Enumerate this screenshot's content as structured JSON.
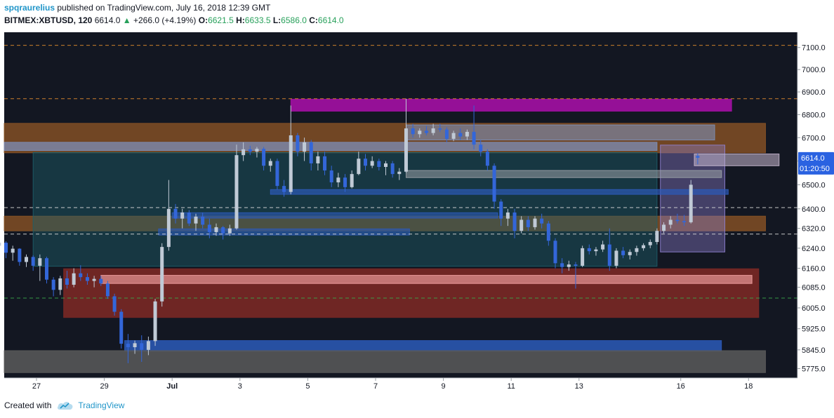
{
  "header": {
    "author": "spqraurelius",
    "published": "published on TradingView.com, July 16, 2018 12:39 GMT",
    "symbol": "BITMEX:XBTUSD, 120",
    "last": "6614.0",
    "change": "+266.0 (+4.19%)",
    "open_label": "O:",
    "open": "6621.5",
    "high_label": "H:",
    "high": "6633.5",
    "low_label": "L:",
    "low": "6586.0",
    "close_label": "C:",
    "close": "6614.0"
  },
  "footer": {
    "created_with": "Created with",
    "brand": "TradingView"
  },
  "colors": {
    "background": "#131722",
    "up": "#c0cad6",
    "down": "#3366d9",
    "accent_magenta": "#9c109c",
    "accent_orange": "#8a5326",
    "accent_red": "#7a2825",
    "accent_blue": "#2c5ab8",
    "price_badge": "#2a62e1"
  },
  "chart_data": {
    "type": "candlestick",
    "x_axis_labels": [
      "27",
      "29",
      "Jul",
      "3",
      "5",
      "7",
      "9",
      "11",
      "13",
      "16",
      "18"
    ],
    "y_axis_labels": [
      "7100.0",
      "7000.0",
      "6900.0",
      "6800.0",
      "6700.0",
      "6600.0",
      "6500.0",
      "6400.0",
      "6320.0",
      "6240.0",
      "6160.0",
      "6085.0",
      "6005.0",
      "5925.0",
      "5845.0",
      "5775.0"
    ],
    "y_scale": "log",
    "ylim": [
      5740,
      7170
    ],
    "last_price_label": "6614.0",
    "countdown_label": "01:20:50",
    "horizontal_lines": [
      {
        "price": 7110,
        "style": "dashed",
        "color": "#e08a2e"
      },
      {
        "price": 6870,
        "style": "dashed",
        "color": "#e08a2e"
      },
      {
        "price": 6405,
        "style": "dashed",
        "color": "#d8d8d8"
      },
      {
        "price": 6297,
        "style": "dashed",
        "color": "#d8d8d8"
      },
      {
        "price": 6043,
        "style": "dashed",
        "color": "#3aa84a"
      }
    ],
    "zones": [
      {
        "date_from": "Jun 26",
        "date_to": "Jul 18.5",
        "price_from": 6635,
        "price_to": 6762,
        "color": "#8a5326",
        "opacity": 0.8
      },
      {
        "date_from": "Jun 26",
        "date_to": "Jul 18.5",
        "price_from": 6310,
        "price_to": 6370,
        "color": "#8a5326",
        "opacity": 0.8
      },
      {
        "date_from": "Jul 4.5",
        "date_to": "Jul 17.5",
        "price_from": 6815,
        "price_to": 6868,
        "color": "#a410a4",
        "opacity": 0.9
      },
      {
        "date_from": "Jun 26.9",
        "date_to": "Jul 15.3",
        "price_from": 6168,
        "price_to": 6636,
        "color": "#1d5f6b",
        "opacity": 0.45
      },
      {
        "date_from": "Jun 27.8",
        "date_to": "Jul 18.3",
        "price_from": 5968,
        "price_to": 6158,
        "color": "#7a2825",
        "opacity": 0.9
      },
      {
        "date_from": "Jun 29.6",
        "date_to": "Jul 17.2",
        "price_from": 5840,
        "price_to": 5880,
        "color": "#2c5ab8",
        "opacity": 0.85
      },
      {
        "date_from": "Jun 26",
        "date_to": "Jul 18.5",
        "price_from": 5760,
        "price_to": 5842,
        "color": "#5a5a5a",
        "opacity": 0.85
      },
      {
        "date_from": "Jul 15.4",
        "date_to": "Jul 17.3",
        "price_from": 6225,
        "price_to": 6668,
        "color": "#8e7fd0",
        "opacity": 0.4
      },
      {
        "date_from": "Jun 26",
        "date_to": "Jul 15.3",
        "price_from": 6645,
        "price_to": 6680,
        "color": "#7d8fb8",
        "opacity": 0.75
      },
      {
        "date_from": "Jul 7.9",
        "date_to": "Jul 17.0",
        "price_from": 6690,
        "price_to": 6755,
        "color": "#7d8fb8",
        "opacity": 0.6
      },
      {
        "date_from": "Jul 7.9",
        "date_to": "Jul 17.2",
        "price_from": 6530,
        "price_to": 6560,
        "color": "#9aa0a6",
        "opacity": 0.55
      },
      {
        "date_from": "Jul 3.9",
        "date_to": "Jul 17.4",
        "price_from": 6460,
        "price_to": 6480,
        "color": "#2c5ab8",
        "opacity": 0.7
      },
      {
        "date_from": "Jul 1",
        "date_to": "Jul 10.6",
        "price_from": 6362,
        "price_to": 6384,
        "color": "#2c5ab8",
        "opacity": 0.6
      },
      {
        "date_from": "Jun 30.6",
        "date_to": "Jul 8",
        "price_from": 6293,
        "price_to": 6318,
        "color": "#2c5ab8",
        "opacity": 0.6
      },
      {
        "date_from": "Jul 16.4",
        "date_to": "Jul 18.9",
        "price_from": 6580,
        "price_to": 6630,
        "color": "#c8b8d0",
        "opacity": 0.55
      },
      {
        "date_from": "Jun 28.9",
        "date_to": "Jul 18.1",
        "price_from": 6100,
        "price_to": 6132,
        "color": "#f0a0a0",
        "opacity": 0.65
      }
    ],
    "candles": [
      {
        "t": "Jun 25.9",
        "o": 6250,
        "h": 6280,
        "l": 6215,
        "c": 6262
      },
      {
        "t": "Jun 26.1",
        "o": 6262,
        "h": 6268,
        "l": 6200,
        "c": 6222
      },
      {
        "t": "Jun 26.3",
        "o": 6222,
        "h": 6250,
        "l": 6190,
        "c": 6238
      },
      {
        "t": "Jun 26.5",
        "o": 6238,
        "h": 6240,
        "l": 6170,
        "c": 6185
      },
      {
        "t": "Jun 26.7",
        "o": 6185,
        "h": 6215,
        "l": 6165,
        "c": 6205
      },
      {
        "t": "Jun 26.9",
        "o": 6205,
        "h": 6212,
        "l": 6150,
        "c": 6170
      },
      {
        "t": "Jun 27.1",
        "o": 6170,
        "h": 6215,
        "l": 6110,
        "c": 6200
      },
      {
        "t": "Jun 27.3",
        "o": 6200,
        "h": 6206,
        "l": 6100,
        "c": 6115
      },
      {
        "t": "Jun 27.5",
        "o": 6115,
        "h": 6125,
        "l": 6050,
        "c": 6075
      },
      {
        "t": "Jun 27.7",
        "o": 6075,
        "h": 6130,
        "l": 6055,
        "c": 6120
      },
      {
        "t": "Jun 27.9",
        "o": 6120,
        "h": 6150,
        "l": 6080,
        "c": 6095
      },
      {
        "t": "Jun 28.1",
        "o": 6095,
        "h": 6160,
        "l": 6085,
        "c": 6140
      },
      {
        "t": "Jun 28.3",
        "o": 6140,
        "h": 6172,
        "l": 6110,
        "c": 6125
      },
      {
        "t": "Jun 28.5",
        "o": 6125,
        "h": 6140,
        "l": 6095,
        "c": 6110
      },
      {
        "t": "Jun 28.7",
        "o": 6110,
        "h": 6130,
        "l": 6085,
        "c": 6118
      },
      {
        "t": "Jun 28.9",
        "o": 6118,
        "h": 6130,
        "l": 6090,
        "c": 6100
      },
      {
        "t": "Jun 29.1",
        "o": 6100,
        "h": 6110,
        "l": 6040,
        "c": 6050
      },
      {
        "t": "Jun 29.3",
        "o": 6050,
        "h": 6060,
        "l": 5975,
        "c": 5990
      },
      {
        "t": "Jun 29.5",
        "o": 5990,
        "h": 6000,
        "l": 5850,
        "c": 5868
      },
      {
        "t": "Jun 29.7",
        "o": 5868,
        "h": 5905,
        "l": 5795,
        "c": 5855
      },
      {
        "t": "Jun 29.9",
        "o": 5855,
        "h": 5880,
        "l": 5830,
        "c": 5870
      },
      {
        "t": "Jun 30.1",
        "o": 5870,
        "h": 5900,
        "l": 5800,
        "c": 5845
      },
      {
        "t": "Jun 30.3",
        "o": 5845,
        "h": 5895,
        "l": 5825,
        "c": 5878
      },
      {
        "t": "Jun 30.5",
        "o": 5878,
        "h": 6040,
        "l": 5860,
        "c": 6030
      },
      {
        "t": "Jun 30.7",
        "o": 6030,
        "h": 6260,
        "l": 6010,
        "c": 6245
      },
      {
        "t": "Jun 30.9",
        "o": 6245,
        "h": 6520,
        "l": 6230,
        "c": 6400
      },
      {
        "t": "Jul 1.1",
        "o": 6400,
        "h": 6420,
        "l": 6340,
        "c": 6360
      },
      {
        "t": "Jul 1.3",
        "o": 6360,
        "h": 6400,
        "l": 6320,
        "c": 6385
      },
      {
        "t": "Jul 1.5",
        "o": 6385,
        "h": 6395,
        "l": 6330,
        "c": 6340
      },
      {
        "t": "Jul 1.7",
        "o": 6340,
        "h": 6380,
        "l": 6310,
        "c": 6368
      },
      {
        "t": "Jul 1.9",
        "o": 6368,
        "h": 6385,
        "l": 6320,
        "c": 6335
      },
      {
        "t": "Jul 2.1",
        "o": 6335,
        "h": 6360,
        "l": 6280,
        "c": 6305
      },
      {
        "t": "Jul 2.3",
        "o": 6305,
        "h": 6340,
        "l": 6290,
        "c": 6325
      },
      {
        "t": "Jul 2.5",
        "o": 6325,
        "h": 6330,
        "l": 6275,
        "c": 6300
      },
      {
        "t": "Jul 2.7",
        "o": 6300,
        "h": 6335,
        "l": 6290,
        "c": 6320
      },
      {
        "t": "Jul 2.9",
        "o": 6320,
        "h": 6670,
        "l": 6315,
        "c": 6625
      },
      {
        "t": "Jul 3.1",
        "o": 6625,
        "h": 6680,
        "l": 6600,
        "c": 6650
      },
      {
        "t": "Jul 3.3",
        "o": 6650,
        "h": 6665,
        "l": 6625,
        "c": 6640
      },
      {
        "t": "Jul 3.5",
        "o": 6640,
        "h": 6660,
        "l": 6615,
        "c": 6652
      },
      {
        "t": "Jul 3.7",
        "o": 6652,
        "h": 6660,
        "l": 6560,
        "c": 6580
      },
      {
        "t": "Jul 3.9",
        "o": 6580,
        "h": 6610,
        "l": 6555,
        "c": 6600
      },
      {
        "t": "Jul 4.1",
        "o": 6600,
        "h": 6610,
        "l": 6480,
        "c": 6495
      },
      {
        "t": "Jul 4.3",
        "o": 6495,
        "h": 6520,
        "l": 6450,
        "c": 6470
      },
      {
        "t": "Jul 4.5",
        "o": 6470,
        "h": 6840,
        "l": 6460,
        "c": 6710
      },
      {
        "t": "Jul 4.7",
        "o": 6710,
        "h": 6720,
        "l": 6620,
        "c": 6640
      },
      {
        "t": "Jul 4.9",
        "o": 6640,
        "h": 6700,
        "l": 6600,
        "c": 6680
      },
      {
        "t": "Jul 5.1",
        "o": 6680,
        "h": 6690,
        "l": 6560,
        "c": 6590
      },
      {
        "t": "Jul 5.3",
        "o": 6590,
        "h": 6640,
        "l": 6560,
        "c": 6620
      },
      {
        "t": "Jul 5.5",
        "o": 6620,
        "h": 6640,
        "l": 6540,
        "c": 6560
      },
      {
        "t": "Jul 5.7",
        "o": 6560,
        "h": 6580,
        "l": 6490,
        "c": 6510
      },
      {
        "t": "Jul 5.9",
        "o": 6510,
        "h": 6550,
        "l": 6490,
        "c": 6530
      },
      {
        "t": "Jul 6.1",
        "o": 6530,
        "h": 6545,
        "l": 6470,
        "c": 6490
      },
      {
        "t": "Jul 6.3",
        "o": 6490,
        "h": 6560,
        "l": 6485,
        "c": 6545
      },
      {
        "t": "Jul 6.5",
        "o": 6545,
        "h": 6640,
        "l": 6540,
        "c": 6610
      },
      {
        "t": "Jul 6.7",
        "o": 6610,
        "h": 6630,
        "l": 6560,
        "c": 6580
      },
      {
        "t": "Jul 6.9",
        "o": 6580,
        "h": 6620,
        "l": 6570,
        "c": 6600
      },
      {
        "t": "Jul 7.1",
        "o": 6600,
        "h": 6610,
        "l": 6560,
        "c": 6575
      },
      {
        "t": "Jul 7.3",
        "o": 6575,
        "h": 6600,
        "l": 6540,
        "c": 6590
      },
      {
        "t": "Jul 7.5",
        "o": 6590,
        "h": 6600,
        "l": 6530,
        "c": 6545
      },
      {
        "t": "Jul 7.7",
        "o": 6545,
        "h": 6570,
        "l": 6520,
        "c": 6555
      },
      {
        "t": "Jul 7.9",
        "o": 6555,
        "h": 6870,
        "l": 6550,
        "c": 6740
      },
      {
        "t": "Jul 8.1",
        "o": 6740,
        "h": 6760,
        "l": 6700,
        "c": 6715
      },
      {
        "t": "Jul 8.3",
        "o": 6715,
        "h": 6740,
        "l": 6700,
        "c": 6730
      },
      {
        "t": "Jul 8.5",
        "o": 6730,
        "h": 6750,
        "l": 6710,
        "c": 6720
      },
      {
        "t": "Jul 8.7",
        "o": 6720,
        "h": 6760,
        "l": 6710,
        "c": 6740
      },
      {
        "t": "Jul 8.9",
        "o": 6740,
        "h": 6760,
        "l": 6725,
        "c": 6735
      },
      {
        "t": "Jul 9.1",
        "o": 6735,
        "h": 6745,
        "l": 6680,
        "c": 6695
      },
      {
        "t": "Jul 9.3",
        "o": 6695,
        "h": 6730,
        "l": 6685,
        "c": 6720
      },
      {
        "t": "Jul 9.5",
        "o": 6720,
        "h": 6740,
        "l": 6690,
        "c": 6705
      },
      {
        "t": "Jul 9.7",
        "o": 6705,
        "h": 6735,
        "l": 6690,
        "c": 6725
      },
      {
        "t": "Jul 9.9",
        "o": 6725,
        "h": 6840,
        "l": 6650,
        "c": 6670
      },
      {
        "t": "Jul 10.1",
        "o": 6670,
        "h": 6690,
        "l": 6620,
        "c": 6640
      },
      {
        "t": "Jul 10.3",
        "o": 6640,
        "h": 6650,
        "l": 6560,
        "c": 6580
      },
      {
        "t": "Jul 10.5",
        "o": 6580,
        "h": 6590,
        "l": 6400,
        "c": 6430
      },
      {
        "t": "Jul 10.7",
        "o": 6430,
        "h": 6440,
        "l": 6330,
        "c": 6360
      },
      {
        "t": "Jul 10.9",
        "o": 6360,
        "h": 6400,
        "l": 6330,
        "c": 6385
      },
      {
        "t": "Jul 11.1",
        "o": 6385,
        "h": 6400,
        "l": 6280,
        "c": 6310
      },
      {
        "t": "Jul 11.3",
        "o": 6310,
        "h": 6370,
        "l": 6300,
        "c": 6355
      },
      {
        "t": "Jul 11.5",
        "o": 6355,
        "h": 6370,
        "l": 6310,
        "c": 6325
      },
      {
        "t": "Jul 11.7",
        "o": 6325,
        "h": 6370,
        "l": 6315,
        "c": 6360
      },
      {
        "t": "Jul 11.9",
        "o": 6360,
        "h": 6380,
        "l": 6320,
        "c": 6340
      },
      {
        "t": "Jul 12.1",
        "o": 6340,
        "h": 6350,
        "l": 6250,
        "c": 6270
      },
      {
        "t": "Jul 12.3",
        "o": 6270,
        "h": 6280,
        "l": 6160,
        "c": 6180
      },
      {
        "t": "Jul 12.5",
        "o": 6180,
        "h": 6200,
        "l": 6140,
        "c": 6165
      },
      {
        "t": "Jul 12.7",
        "o": 6165,
        "h": 6190,
        "l": 6150,
        "c": 6175
      },
      {
        "t": "Jul 12.9",
        "o": 6175,
        "h": 6185,
        "l": 6080,
        "c": 6170
      },
      {
        "t": "Jul 13.1",
        "o": 6170,
        "h": 6250,
        "l": 6165,
        "c": 6240
      },
      {
        "t": "Jul 13.3",
        "o": 6240,
        "h": 6255,
        "l": 6215,
        "c": 6228
      },
      {
        "t": "Jul 13.5",
        "o": 6228,
        "h": 6245,
        "l": 6210,
        "c": 6235
      },
      {
        "t": "Jul 13.7",
        "o": 6235,
        "h": 6270,
        "l": 6225,
        "c": 6255
      },
      {
        "t": "Jul 13.9",
        "o": 6255,
        "h": 6320,
        "l": 6150,
        "c": 6170
      },
      {
        "t": "Jul 14.1",
        "o": 6170,
        "h": 6240,
        "l": 6160,
        "c": 6230
      },
      {
        "t": "Jul 14.3",
        "o": 6230,
        "h": 6245,
        "l": 6200,
        "c": 6212
      },
      {
        "t": "Jul 14.5",
        "o": 6212,
        "h": 6235,
        "l": 6195,
        "c": 6225
      },
      {
        "t": "Jul 14.7",
        "o": 6225,
        "h": 6250,
        "l": 6210,
        "c": 6240
      },
      {
        "t": "Jul 14.9",
        "o": 6240,
        "h": 6260,
        "l": 6230,
        "c": 6252
      },
      {
        "t": "Jul 15.1",
        "o": 6252,
        "h": 6275,
        "l": 6240,
        "c": 6265
      },
      {
        "t": "Jul 15.3",
        "o": 6265,
        "h": 6320,
        "l": 6255,
        "c": 6310
      },
      {
        "t": "Jul 15.5",
        "o": 6310,
        "h": 6345,
        "l": 6300,
        "c": 6335
      },
      {
        "t": "Jul 15.7",
        "o": 6335,
        "h": 6370,
        "l": 6320,
        "c": 6355
      },
      {
        "t": "Jul 15.9",
        "o": 6355,
        "h": 6380,
        "l": 6340,
        "c": 6350
      },
      {
        "t": "Jul 16.1",
        "o": 6350,
        "h": 6375,
        "l": 6330,
        "c": 6345
      },
      {
        "t": "Jul 16.3",
        "o": 6345,
        "h": 6520,
        "l": 6340,
        "c": 6500
      },
      {
        "t": "Jul 16.5",
        "o": 6621.5,
        "h": 6633.5,
        "l": 6586,
        "c": 6614
      }
    ]
  }
}
